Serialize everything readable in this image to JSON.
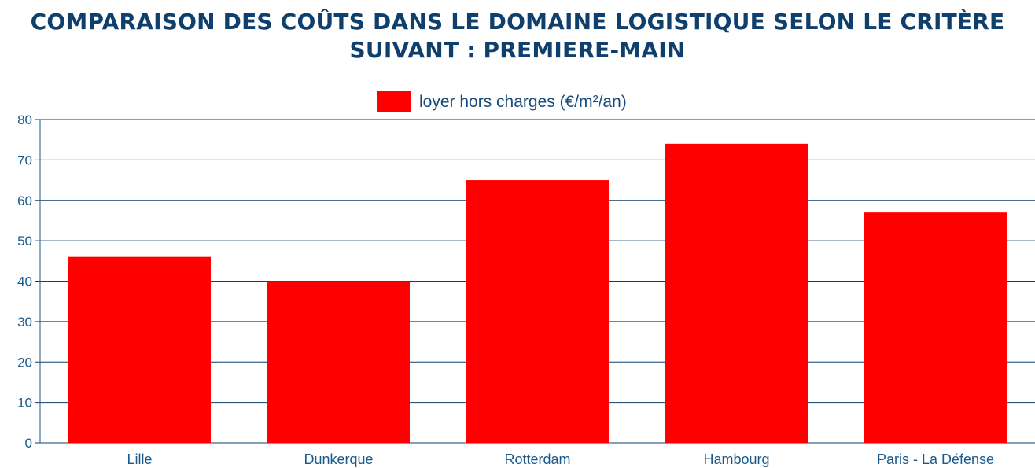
{
  "chart_data": {
    "type": "bar",
    "title_lines": [
      "COMPARAISON DES COÛTS DANS LE DOMAINE LOGISTIQUE SELON LE CRITÈRE",
      "SUIVANT : PREMIERE-MAIN"
    ],
    "categories": [
      "Lille",
      "Dunkerque",
      "Rotterdam",
      "Hambourg",
      "Paris - La Défense"
    ],
    "series": [
      {
        "name": "loyer hors charges (€/m²/an)",
        "values": [
          46,
          40,
          65,
          74,
          57
        ],
        "color": "#ff0000"
      }
    ],
    "ylim": [
      0,
      80
    ],
    "yticks": [
      "0",
      "10",
      "20",
      "30",
      "40",
      "50",
      "60",
      "70",
      "80"
    ],
    "grid": true,
    "legend_position": "top-center"
  },
  "colors": {
    "title": "#0f3f6d",
    "axis": "#1a5a8a",
    "grid": "#0f3f6d",
    "bar": "#ff0000"
  }
}
